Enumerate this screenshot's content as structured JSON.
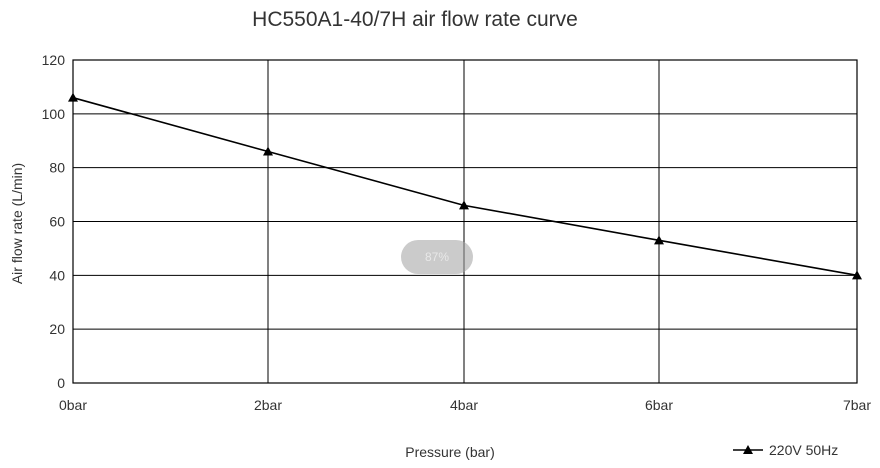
{
  "chart_data": {
    "type": "line",
    "title": "HC550A1-40/7H air flow rate curve",
    "xlabel": "Pressure (bar)",
    "ylabel": "Air flow rate (L/min)",
    "x": [
      "0bar",
      "2bar",
      "4bar",
      "6bar",
      "7bar"
    ],
    "series": [
      {
        "name": "220V 50Hz",
        "values": [
          106,
          86,
          66,
          53,
          40
        ]
      }
    ],
    "ylim": [
      0,
      120
    ],
    "yticks": [
      0,
      20,
      40,
      60,
      80,
      100,
      120
    ],
    "grid": true,
    "legend": "bottom-right",
    "colors": {
      "line": "#000000",
      "grid": "#000000",
      "text": "#333333"
    }
  },
  "overlay": {
    "zoom_label": "87%"
  }
}
